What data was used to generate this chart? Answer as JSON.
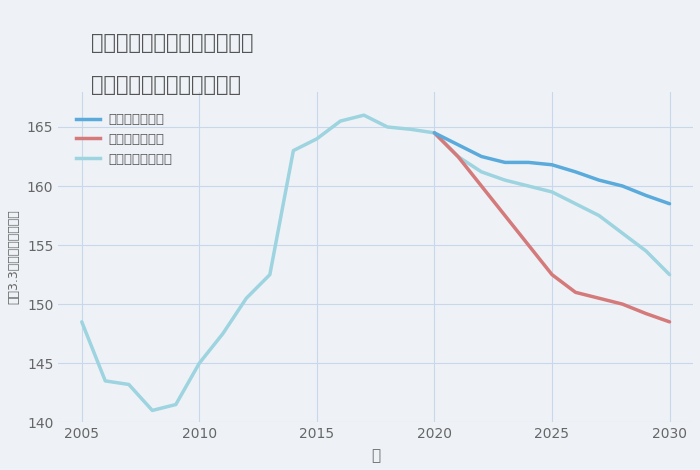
{
  "title_line1": "兵庫県西宮市山口町金仙寺の",
  "title_line2": "中古マンションの価格推移",
  "xlabel": "年",
  "ylabel": "坪（3.3㎡）単価（万円）",
  "background_color": "#eef2f7",
  "plot_background": "#eef2f7",
  "ylim": [
    140,
    168
  ],
  "xlim": [
    2004,
    2031
  ],
  "yticks": [
    140,
    145,
    150,
    155,
    160,
    165
  ],
  "xticks": [
    2005,
    2010,
    2015,
    2020,
    2025,
    2030
  ],
  "good_scenario": {
    "label": "グッドシナリオ",
    "color": "#5aabdb",
    "linewidth": 2.5,
    "x": [
      2020,
      2021,
      2022,
      2023,
      2024,
      2025,
      2026,
      2027,
      2028,
      2029,
      2030
    ],
    "y": [
      164.5,
      163.5,
      162.5,
      162.0,
      162.0,
      161.8,
      161.2,
      160.5,
      160.0,
      159.2,
      158.5
    ]
  },
  "bad_scenario": {
    "label": "バッドシナリオ",
    "color": "#d47a7a",
    "linewidth": 2.5,
    "x": [
      2020,
      2021,
      2022,
      2023,
      2024,
      2025,
      2026,
      2027,
      2028,
      2029,
      2030
    ],
    "y": [
      164.5,
      162.5,
      160.0,
      157.5,
      155.0,
      152.5,
      151.0,
      150.5,
      150.0,
      149.2,
      148.5
    ]
  },
  "normal_scenario": {
    "label": "ノーマルシナリオ",
    "color": "#9dd4df",
    "linewidth": 2.5,
    "x": [
      2005,
      2006,
      2007,
      2008,
      2009,
      2010,
      2011,
      2012,
      2013,
      2014,
      2015,
      2016,
      2017,
      2018,
      2019,
      2020,
      2021,
      2022,
      2023,
      2024,
      2025,
      2026,
      2027,
      2028,
      2029,
      2030
    ],
    "y": [
      148.5,
      143.5,
      143.2,
      141.0,
      141.5,
      145.0,
      147.5,
      150.5,
      152.5,
      163.0,
      164.0,
      165.5,
      166.0,
      165.0,
      164.8,
      164.5,
      162.5,
      161.2,
      160.5,
      160.0,
      159.5,
      158.5,
      157.5,
      156.0,
      154.5,
      152.5
    ]
  },
  "grid_color": "#c8d8ea",
  "title_color": "#555555",
  "tick_color": "#666666",
  "legend_label_color": "#555555"
}
